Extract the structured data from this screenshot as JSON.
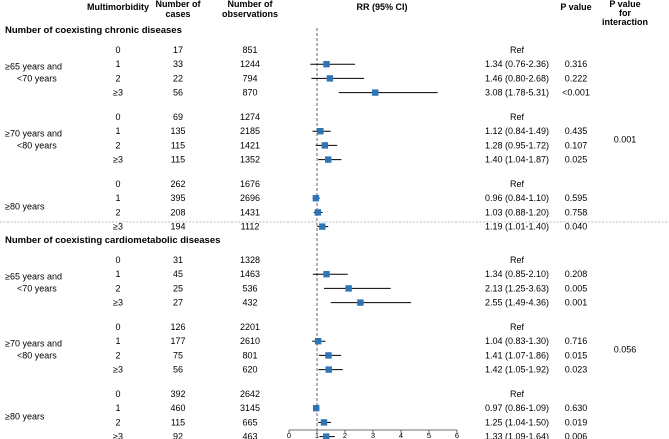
{
  "chart_data": {
    "type": "forest",
    "headers": {
      "multimorbidity": "Multimorbidity",
      "cases": [
        "Number of",
        "cases"
      ],
      "observations": [
        "Number of",
        "observations"
      ],
      "rr": "RR (95% CI)",
      "pvalue": "P value",
      "interaction": [
        "P value",
        "for",
        "interaction"
      ]
    },
    "reference_line": 1,
    "xlim": [
      0,
      6
    ],
    "xticks": [
      "0",
      "1",
      "2",
      "3",
      "4",
      "5",
      "6"
    ],
    "panels": [
      {
        "title": "Number of coexisting chronic diseases",
        "groups": [
          {
            "label": [
              "≥65 years and",
              "<70 years"
            ],
            "interaction": "",
            "rows": [
              {
                "level": "0",
                "cases": "17",
                "observations": "851",
                "rr_text": "Ref",
                "p": "",
                "rr": null,
                "lo": null,
                "hi": null
              },
              {
                "level": "1",
                "cases": "33",
                "observations": "1244",
                "rr_text": "1.34 (0.76-2.36)",
                "p": "0.316",
                "rr": 1.34,
                "lo": 0.76,
                "hi": 2.36
              },
              {
                "level": "2",
                "cases": "22",
                "observations": "794",
                "rr_text": "1.46 (0.80-2.68)",
                "p": "0.222",
                "rr": 1.46,
                "lo": 0.8,
                "hi": 2.68
              },
              {
                "level": "≥3",
                "cases": "56",
                "observations": "870",
                "rr_text": "3.08 (1.78-5.31)",
                "p": "<0.001",
                "rr": 3.08,
                "lo": 1.78,
                "hi": 5.31
              }
            ]
          },
          {
            "label": [
              "≥70 years and",
              "<80 years"
            ],
            "interaction": "0.001",
            "rows": [
              {
                "level": "0",
                "cases": "69",
                "observations": "1274",
                "rr_text": "Ref",
                "p": "",
                "rr": null,
                "lo": null,
                "hi": null
              },
              {
                "level": "1",
                "cases": "135",
                "observations": "2185",
                "rr_text": "1.12 (0.84-1.49)",
                "p": "0.435",
                "rr": 1.12,
                "lo": 0.84,
                "hi": 1.49
              },
              {
                "level": "2",
                "cases": "115",
                "observations": "1421",
                "rr_text": "1.28 (0.95-1.72)",
                "p": "0.107",
                "rr": 1.28,
                "lo": 0.95,
                "hi": 1.72
              },
              {
                "level": "≥3",
                "cases": "115",
                "observations": "1352",
                "rr_text": "1.40 (1.04-1.87)",
                "p": "0.025",
                "rr": 1.4,
                "lo": 1.04,
                "hi": 1.87
              }
            ]
          },
          {
            "label": [
              "≥80 years"
            ],
            "interaction": "",
            "rows": [
              {
                "level": "0",
                "cases": "262",
                "observations": "1676",
                "rr_text": "Ref",
                "p": "",
                "rr": null,
                "lo": null,
                "hi": null
              },
              {
                "level": "1",
                "cases": "395",
                "observations": "2696",
                "rr_text": "0.96 (0.84-1.10)",
                "p": "0.595",
                "rr": 0.96,
                "lo": 0.84,
                "hi": 1.1
              },
              {
                "level": "2",
                "cases": "208",
                "observations": "1431",
                "rr_text": "1.03 (0.88-1.20)",
                "p": "0.758",
                "rr": 1.03,
                "lo": 0.88,
                "hi": 1.2
              },
              {
                "level": "≥3",
                "cases": "194",
                "observations": "1112",
                "rr_text": "1.19 (1.01-1.40)",
                "p": "0.040",
                "rr": 1.19,
                "lo": 1.01,
                "hi": 1.4
              }
            ]
          }
        ]
      },
      {
        "title": "Number of coexisting cardiometabolic diseases",
        "groups": [
          {
            "label": [
              "≥65 years and",
              "<70 years"
            ],
            "interaction": "",
            "rows": [
              {
                "level": "0",
                "cases": "31",
                "observations": "1328",
                "rr_text": "Ref",
                "p": "",
                "rr": null,
                "lo": null,
                "hi": null
              },
              {
                "level": "1",
                "cases": "45",
                "observations": "1463",
                "rr_text": "1.34 (0.85-2.10)",
                "p": "0.208",
                "rr": 1.34,
                "lo": 0.85,
                "hi": 2.1
              },
              {
                "level": "2",
                "cases": "25",
                "observations": "536",
                "rr_text": "2.13 (1.25-3.63)",
                "p": "0.005",
                "rr": 2.13,
                "lo": 1.25,
                "hi": 3.63
              },
              {
                "level": "≥3",
                "cases": "27",
                "observations": "432",
                "rr_text": "2.55 (1.49-4.36)",
                "p": "0.001",
                "rr": 2.55,
                "lo": 1.49,
                "hi": 4.36
              }
            ]
          },
          {
            "label": [
              "≥70 years and",
              "<80 years"
            ],
            "interaction": "0.056",
            "rows": [
              {
                "level": "0",
                "cases": "126",
                "observations": "2201",
                "rr_text": "Ref",
                "p": "",
                "rr": null,
                "lo": null,
                "hi": null
              },
              {
                "level": "1",
                "cases": "177",
                "observations": "2610",
                "rr_text": "1.04 (0.83-1.30)",
                "p": "0.716",
                "rr": 1.04,
                "lo": 0.83,
                "hi": 1.3
              },
              {
                "level": "2",
                "cases": "75",
                "observations": "801",
                "rr_text": "1.41 (1.07-1.86)",
                "p": "0.015",
                "rr": 1.41,
                "lo": 1.07,
                "hi": 1.86
              },
              {
                "level": "≥3",
                "cases": "56",
                "observations": "620",
                "rr_text": "1.42 (1.05-1.92)",
                "p": "0.023",
                "rr": 1.42,
                "lo": 1.05,
                "hi": 1.92
              }
            ]
          },
          {
            "label": [
              "≥80 years"
            ],
            "interaction": "",
            "rows": [
              {
                "level": "0",
                "cases": "392",
                "observations": "2642",
                "rr_text": "Ref",
                "p": "",
                "rr": null,
                "lo": null,
                "hi": null
              },
              {
                "level": "1",
                "cases": "460",
                "observations": "3145",
                "rr_text": "0.97 (0.86-1.09)",
                "p": "0.630",
                "rr": 0.97,
                "lo": 0.86,
                "hi": 1.09
              },
              {
                "level": "2",
                "cases": "115",
                "observations": "665",
                "rr_text": "1.25 (1.04-1.50)",
                "p": "0.019",
                "rr": 1.25,
                "lo": 1.04,
                "hi": 1.5
              },
              {
                "level": "≥3",
                "cases": "92",
                "observations": "463",
                "rr_text": "1.33 (1.09-1.64)",
                "p": "0.006",
                "rr": 1.33,
                "lo": 1.09,
                "hi": 1.64
              }
            ]
          }
        ]
      }
    ]
  },
  "colors": {
    "marker": "#2e75b6",
    "ci_line": "#000000",
    "reference_line": "#7f7f7f",
    "separator": "#a6a6a6",
    "axis": "#404040"
  }
}
